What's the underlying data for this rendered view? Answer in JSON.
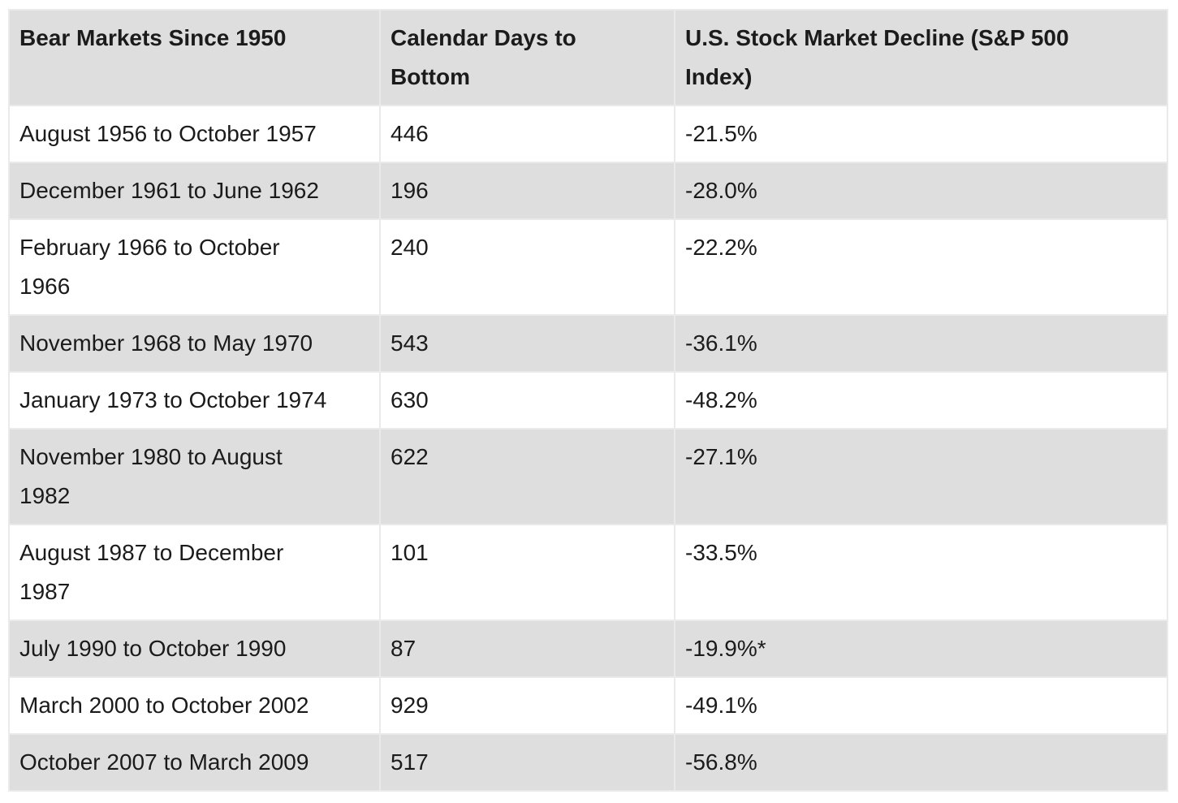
{
  "colors": {
    "header_bg": "#dedede",
    "stripe_bg": "#dedede",
    "row_bg": "#ffffff",
    "border": "#eaeaea",
    "text": "#1b1b1b"
  },
  "table": {
    "columns": [
      {
        "label": "Bear Markets Since 1950"
      },
      {
        "label": "Calendar Days to\nBottom"
      },
      {
        "label": "U.S. Stock Market Decline (S&P 500\nIndex)"
      }
    ],
    "rows": [
      {
        "period": "August 1956 to October 1957",
        "days": "446",
        "decline": "-21.5%"
      },
      {
        "period": "December 1961 to June 1962",
        "days": "196",
        "decline": "-28.0%"
      },
      {
        "period": "February 1966 to October\n1966",
        "days": "240",
        "decline": "-22.2%"
      },
      {
        "period": "November 1968 to May 1970",
        "days": "543",
        "decline": "-36.1%"
      },
      {
        "period": "January 1973 to October 1974",
        "days": "630",
        "decline": "-48.2%"
      },
      {
        "period": "November 1980 to August\n1982",
        "days": "622",
        "decline": "-27.1%"
      },
      {
        "period": "August 1987 to December\n1987",
        "days": "101",
        "decline": "-33.5%"
      },
      {
        "period": "July 1990 to October 1990",
        "days": "87",
        "decline": "-19.9%*"
      },
      {
        "period": "March 2000 to October 2002",
        "days": "929",
        "decline": "-49.1%"
      },
      {
        "period": "October 2007 to March 2009",
        "days": "517",
        "decline": "-56.8%"
      }
    ]
  },
  "chart_data": {
    "type": "table",
    "title": "Bear Markets Since 1950",
    "columns": [
      "Bear Markets Since 1950",
      "Calendar Days to Bottom",
      "U.S. Stock Market Decline (S&P 500 Index)"
    ],
    "rows": [
      [
        "August 1956 to October 1957",
        446,
        "-21.5%"
      ],
      [
        "December 1961 to June 1962",
        196,
        "-28.0%"
      ],
      [
        "February 1966 to October 1966",
        240,
        "-22.2%"
      ],
      [
        "November 1968 to May 1970",
        543,
        "-36.1%"
      ],
      [
        "January 1973 to October 1974",
        630,
        "-48.2%"
      ],
      [
        "November 1980 to August 1982",
        622,
        "-27.1%"
      ],
      [
        "August 1987 to December 1987",
        101,
        "-33.5%"
      ],
      [
        "July 1990 to October 1990",
        87,
        "-19.9%*"
      ],
      [
        "March 2000 to October 2002",
        929,
        "-49.1%"
      ],
      [
        "October 2007 to March 2009",
        517,
        "-56.8%"
      ]
    ],
    "footnote_marker": "* appears after the July 1990 decline value"
  }
}
